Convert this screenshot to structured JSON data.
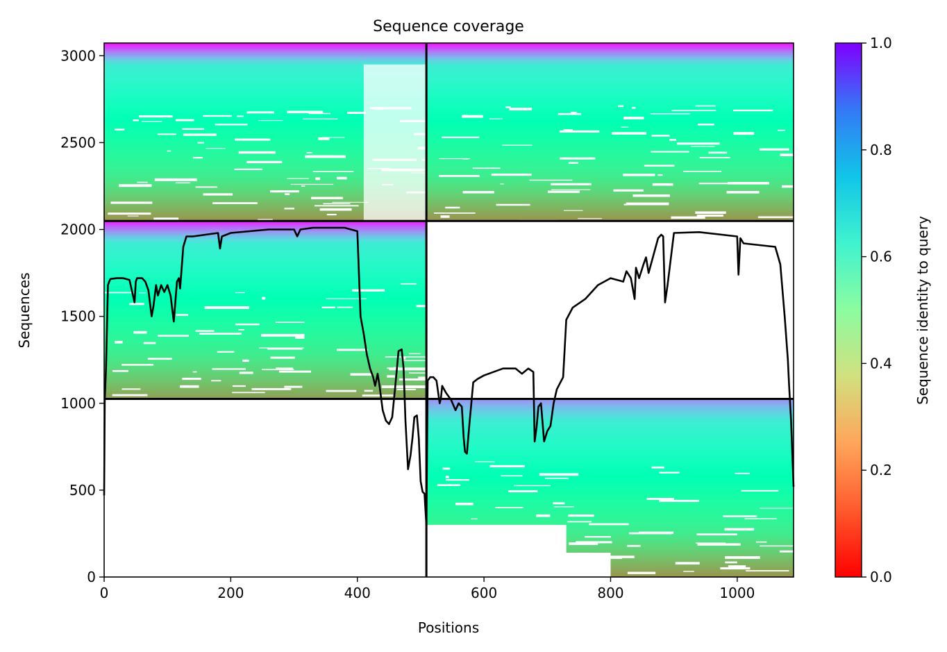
{
  "chart_data": {
    "type": "heatmap",
    "title": "Sequence coverage",
    "xlabel": "Positions",
    "ylabel": "Sequences",
    "xlim": [
      0,
      1089
    ],
    "ylim": [
      0,
      3073
    ],
    "xticks": [
      0,
      200,
      400,
      600,
      800,
      1000
    ],
    "yticks": [
      0,
      500,
      1000,
      1500,
      2000,
      2500,
      3000
    ],
    "grid": false,
    "chain_boundaries": {
      "x": 509,
      "y": [
        1025,
        2049
      ]
    },
    "colorbar": {
      "label": "Sequence identity to query",
      "colormap": "rainbow_r",
      "range": [
        0,
        1
      ],
      "ticks": [
        "0.0",
        "0.2",
        "0.4",
        "0.6",
        "0.8",
        "1.0"
      ]
    },
    "blocks": [
      {
        "name": "chain-A pair rows",
        "x": [
          0,
          509
        ],
        "y": [
          1025,
          2049
        ],
        "identity_bottom": 0.22,
        "identity_top": 0.95
      },
      {
        "name": "chain-B pair rows",
        "x": [
          509,
          1089
        ],
        "y": [
          0,
          1025
        ],
        "identity_bottom": 0.2,
        "identity_top": 0.8
      },
      {
        "name": "unpaired rows chain A",
        "x": [
          0,
          509
        ],
        "y": [
          2049,
          3073
        ],
        "identity_bottom": 0.2,
        "identity_top": 0.97
      },
      {
        "name": "unpaired rows chain B",
        "x": [
          509,
          1089
        ],
        "y": [
          2049,
          3073
        ],
        "identity_bottom": 0.2,
        "identity_top": 0.97
      }
    ],
    "coverage_line": {
      "x": [
        0,
        1,
        3,
        6,
        8,
        10,
        20,
        30,
        40,
        48,
        50,
        52,
        60,
        65,
        70,
        75,
        78,
        82,
        85,
        90,
        95,
        100,
        105,
        110,
        112,
        115,
        118,
        120,
        125,
        130,
        140,
        160,
        180,
        183,
        186,
        200,
        230,
        260,
        300,
        305,
        310,
        330,
        350,
        380,
        400,
        405,
        410,
        415,
        420,
        425,
        428,
        432,
        435,
        440,
        445,
        450,
        455,
        460,
        465,
        470,
        473,
        476,
        480,
        484,
        487,
        490,
        494,
        497,
        500,
        503,
        506,
        509,
        511,
        515,
        520,
        525,
        530,
        532,
        534,
        540,
        548,
        555,
        560,
        565,
        568,
        570,
        573,
        577,
        580,
        583,
        590,
        600,
        630,
        650,
        660,
        670,
        678,
        680,
        683,
        686,
        690,
        695,
        700,
        705,
        710,
        715,
        725,
        730,
        740,
        760,
        780,
        800,
        820,
        825,
        832,
        838,
        840,
        845,
        852,
        856,
        860,
        875,
        880,
        883,
        886,
        890,
        900,
        940,
        1000,
        1002,
        1005,
        1010,
        1060,
        1068,
        1075,
        1080,
        1082,
        1085,
        1089
      ],
      "y": [
        470,
        1020,
        1200,
        1680,
        1700,
        1715,
        1720,
        1720,
        1710,
        1580,
        1700,
        1720,
        1720,
        1700,
        1650,
        1500,
        1560,
        1680,
        1620,
        1680,
        1640,
        1680,
        1620,
        1470,
        1560,
        1700,
        1720,
        1660,
        1900,
        1960,
        1960,
        1970,
        1980,
        1890,
        1960,
        1980,
        1990,
        2000,
        2000,
        1960,
        2000,
        2010,
        2010,
        2010,
        1990,
        1500,
        1400,
        1280,
        1200,
        1150,
        1100,
        1170,
        1100,
        960,
        900,
        880,
        920,
        1100,
        1300,
        1310,
        1200,
        900,
        620,
        700,
        800,
        920,
        930,
        800,
        550,
        490,
        480,
        300,
        1130,
        1150,
        1150,
        1130,
        1000,
        1030,
        1100,
        1060,
        1020,
        960,
        1000,
        980,
        800,
        720,
        710,
        880,
        1000,
        1120,
        1140,
        1160,
        1200,
        1200,
        1170,
        1200,
        1180,
        780,
        860,
        980,
        1000,
        780,
        840,
        870,
        1000,
        1080,
        1150,
        1480,
        1550,
        1600,
        1680,
        1720,
        1700,
        1760,
        1720,
        1600,
        1780,
        1720,
        1800,
        1840,
        1750,
        1950,
        1970,
        1960,
        1580,
        1680,
        1980,
        1985,
        1960,
        1740,
        1950,
        1920,
        1900,
        1800,
        1500,
        1250,
        1100,
        900,
        520
      ]
    }
  }
}
